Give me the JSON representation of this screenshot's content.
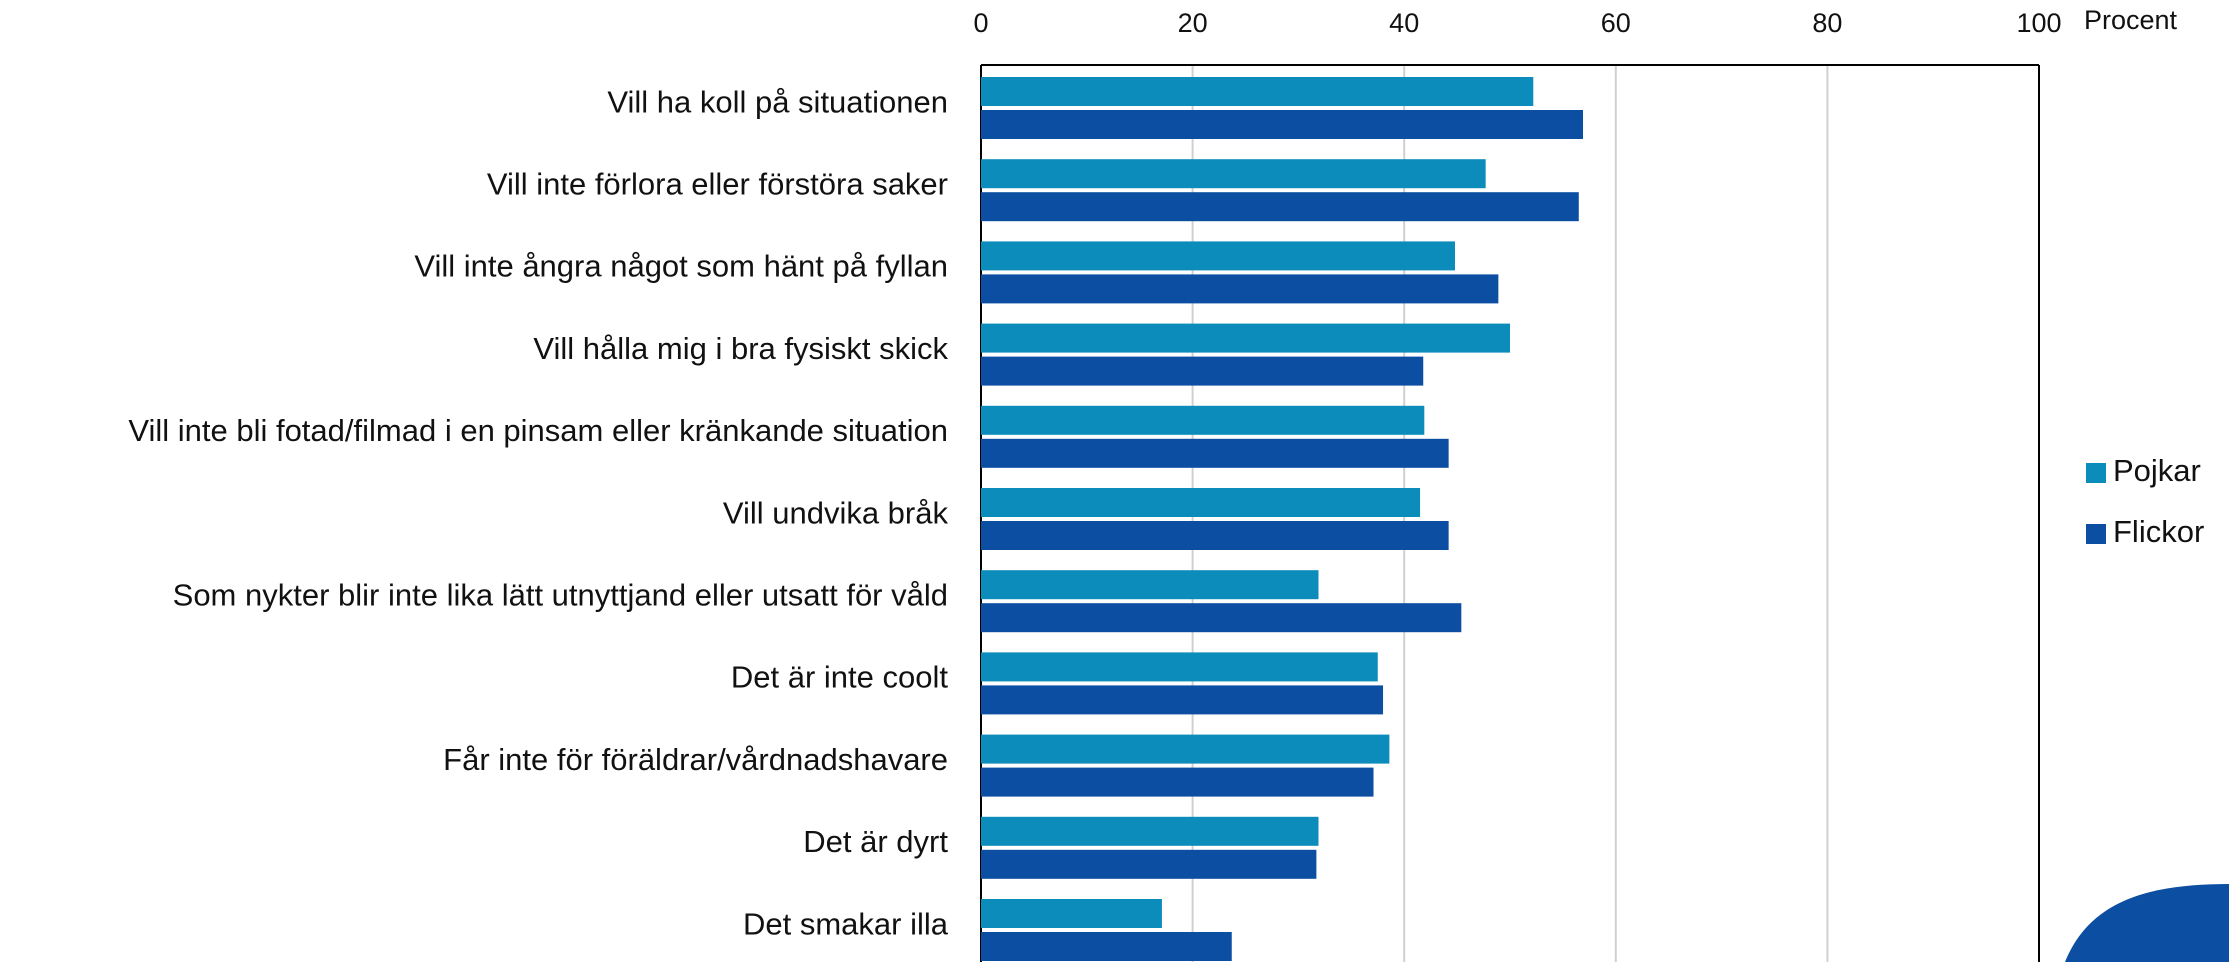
{
  "chart_data": {
    "type": "bar",
    "orientation": "horizontal",
    "xlabel": "Procent",
    "categories": [
      "Vill ha koll på situationen",
      "Vill inte förlora eller förstöra saker",
      "Vill inte ångra något som hänt på fyllan",
      "Vill hålla mig i bra fysiskt skick",
      "Vill inte bli fotad/filmad i en pinsam eller kränkande situation",
      "Vill undvika bråk",
      "Som nykter blir inte lika lätt utnyttjand eller utsatt för våld",
      "Det är inte coolt",
      "Får inte för föräldrar/vårdnadshavare",
      "Det är dyrt",
      "Det smakar illa"
    ],
    "series": [
      {
        "name": "Pojkar",
        "color": "#0b8cba",
        "values": [
          52.2,
          47.7,
          44.8,
          50.0,
          41.9,
          41.5,
          31.9,
          37.5,
          38.6,
          31.9,
          17.1
        ]
      },
      {
        "name": "Flickor",
        "color": "#0b4ea2",
        "values": [
          56.9,
          56.5,
          48.9,
          41.8,
          44.2,
          44.2,
          45.4,
          38.0,
          37.1,
          31.7,
          23.7
        ]
      }
    ],
    "xlim": [
      0,
      100
    ],
    "xticks": [
      0,
      20,
      40,
      60,
      80,
      100
    ],
    "grid": true,
    "legend": "right"
  }
}
